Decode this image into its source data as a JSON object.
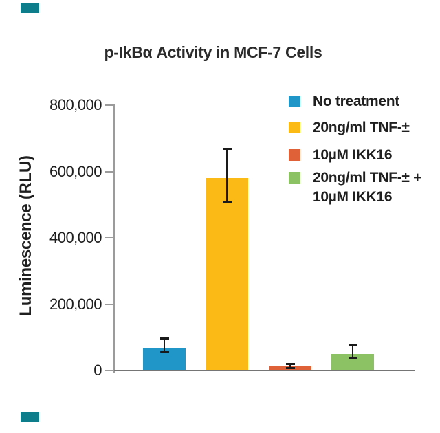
{
  "page": {
    "background": "#ffffff"
  },
  "brand": {
    "accent_color": "#0d7d8c"
  },
  "chart_data": {
    "type": "bar",
    "title": "p-IkBα Activity in MCF-7 Cells",
    "ylabel": "Luminescence (RLU)",
    "xlabel": "",
    "ylim": [
      0,
      800000
    ],
    "yticks": [
      0,
      200000,
      400000,
      600000,
      800000
    ],
    "ytick_labels": [
      "0",
      "200,000",
      "400,000",
      "600,000",
      "800,000"
    ],
    "grid": false,
    "legend_position": "top-right",
    "categories": [
      "No treatment",
      "20ng/ml TNF-±",
      "10µM IKK16",
      "20ng/ml TNF-± + 10µM IKK16"
    ],
    "series": [
      {
        "name": "Luminescence (RLU)",
        "values": [
          68000,
          580000,
          12000,
          50000
        ],
        "error_up": [
          29000,
          90000,
          9000,
          28000
        ],
        "error_down": [
          14000,
          75000,
          5000,
          14000
        ]
      }
    ],
    "bar_colors": [
      "#2095c7",
      "#fcba16",
      "#de6138",
      "#8cc263"
    ],
    "error_bar_color": "#1a1a1a",
    "axis_color": "#9b9b9b",
    "baseline_color": "#757575"
  },
  "legend": {
    "items": [
      {
        "label": "No treatment",
        "color": "#2095c7"
      },
      {
        "label": "20ng/ml TNF-±",
        "color": "#fcba16"
      },
      {
        "label": "10µM IKK16",
        "color": "#de6138"
      },
      {
        "label": "20ng/ml TNF-± +\n10µM IKK16",
        "color": "#8cc263"
      }
    ]
  }
}
